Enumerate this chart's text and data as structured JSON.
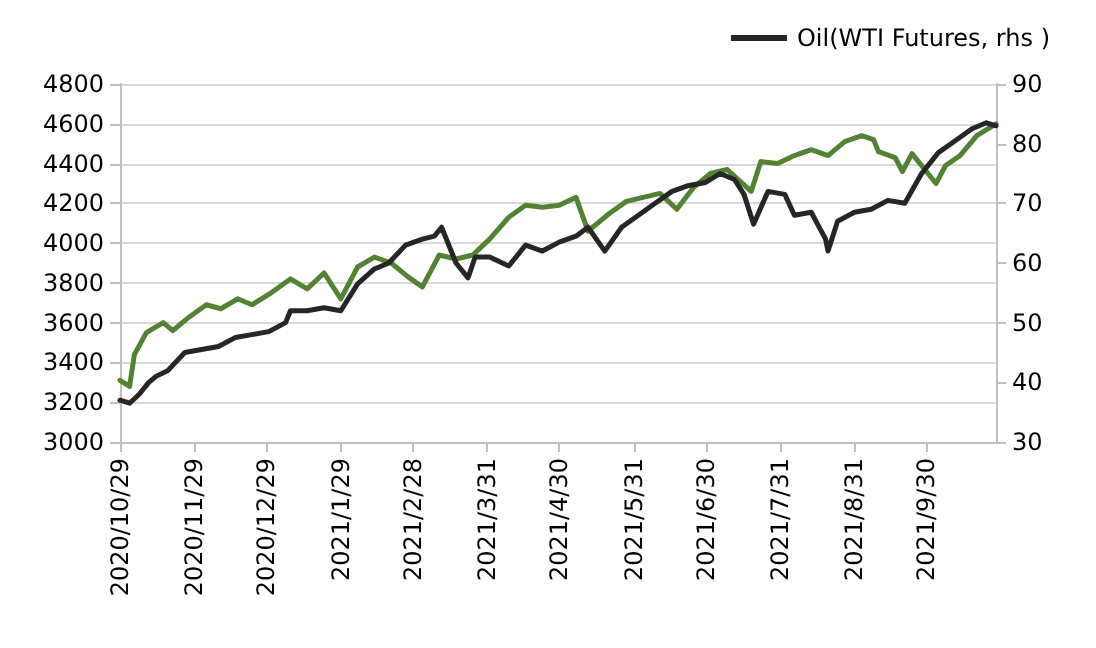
{
  "chart_data": {
    "type": "line",
    "legend": "top right",
    "grid": "y",
    "marker": "none",
    "line_style": "solid",
    "xlim": [
      "2020-10-29",
      "2021-10-29"
    ],
    "xticks": [
      {
        "value": "2020-10-29",
        "label": "2020/10/29"
      },
      {
        "value": "2020-11-29",
        "label": "2020/11/29"
      },
      {
        "value": "2020-12-29",
        "label": "2020/12/29"
      },
      {
        "value": "2021-01-29",
        "label": "2021/1/29"
      },
      {
        "value": "2021-02-28",
        "label": "2021/2/28"
      },
      {
        "value": "2021-03-31",
        "label": "2021/3/31"
      },
      {
        "value": "2021-04-30",
        "label": "2021/4/30"
      },
      {
        "value": "2021-05-31",
        "label": "2021/5/31"
      },
      {
        "value": "2021-06-30",
        "label": "2021/6/30"
      },
      {
        "value": "2021-07-31",
        "label": "2021/7/31"
      },
      {
        "value": "2021-08-31",
        "label": "2021/8/31"
      },
      {
        "value": "2021-09-30",
        "label": "2021/9/30"
      }
    ],
    "ylim": [
      3000,
      4800
    ],
    "yticks": [
      3000,
      3200,
      3400,
      3600,
      3800,
      4000,
      4200,
      4400,
      4600,
      4800
    ],
    "y2lim": [
      30,
      90
    ],
    "y2ticks": [
      30,
      40,
      50,
      60,
      70,
      80,
      90
    ],
    "series": [
      {
        "color": "#548235",
        "x": [
          "2020-10-29",
          "2020-11-02",
          "2020-11-04",
          "2020-11-09",
          "2020-11-16",
          "2020-11-20",
          "2020-11-27",
          "2020-12-04",
          "2020-12-10",
          "2020-12-17",
          "2020-12-23",
          "2020-12-31",
          "2021-01-08",
          "2021-01-15",
          "2021-01-22",
          "2021-01-29",
          "2021-02-05",
          "2021-02-12",
          "2021-02-19",
          "2021-02-26",
          "2021-03-04",
          "2021-03-11",
          "2021-03-18",
          "2021-03-25",
          "2021-04-01",
          "2021-04-09",
          "2021-04-16",
          "2021-04-23",
          "2021-04-30",
          "2021-05-07",
          "2021-05-12",
          "2021-05-21",
          "2021-05-28",
          "2021-06-04",
          "2021-06-11",
          "2021-06-18",
          "2021-06-25",
          "2021-07-02",
          "2021-07-09",
          "2021-07-19",
          "2021-07-23",
          "2021-07-30",
          "2021-08-06",
          "2021-08-13",
          "2021-08-20",
          "2021-08-27",
          "2021-09-03",
          "2021-09-08",
          "2021-09-10",
          "2021-09-17",
          "2021-09-20",
          "2021-09-24",
          "2021-10-04",
          "2021-10-08",
          "2021-10-14",
          "2021-10-21",
          "2021-10-29"
        ],
        "values": [
          3310,
          3280,
          3440,
          3550,
          3600,
          3560,
          3630,
          3690,
          3670,
          3720,
          3690,
          3750,
          3820,
          3770,
          3850,
          3720,
          3880,
          3930,
          3900,
          3830,
          3780,
          3940,
          3920,
          3940,
          4020,
          4130,
          4190,
          4180,
          4190,
          4230,
          4060,
          4150,
          4210,
          4230,
          4250,
          4170,
          4280,
          4350,
          4370,
          4260,
          4410,
          4400,
          4440,
          4470,
          4440,
          4510,
          4540,
          4520,
          4460,
          4430,
          4360,
          4450,
          4300,
          4390,
          4440,
          4540,
          4600
        ]
      },
      {
        "name": "Oil(WTI Futures, rhs )",
        "color": "#262626",
        "axis": "y2",
        "x": [
          "2020-10-29",
          "2020-11-02",
          "2020-11-06",
          "2020-11-10",
          "2020-11-13",
          "2020-11-18",
          "2020-11-25",
          "2020-12-02",
          "2020-12-09",
          "2020-12-16",
          "2020-12-23",
          "2020-12-30",
          "2021-01-06",
          "2021-01-08",
          "2021-01-15",
          "2021-01-22",
          "2021-01-29",
          "2021-02-05",
          "2021-02-12",
          "2021-02-18",
          "2021-02-25",
          "2021-03-04",
          "2021-03-09",
          "2021-03-12",
          "2021-03-18",
          "2021-03-23",
          "2021-03-26",
          "2021-04-01",
          "2021-04-09",
          "2021-04-16",
          "2021-04-23",
          "2021-04-30",
          "2021-05-07",
          "2021-05-12",
          "2021-05-19",
          "2021-05-26",
          "2021-06-02",
          "2021-06-09",
          "2021-06-16",
          "2021-06-23",
          "2021-06-30",
          "2021-07-06",
          "2021-07-12",
          "2021-07-16",
          "2021-07-20",
          "2021-07-26",
          "2021-08-02",
          "2021-08-06",
          "2021-08-13",
          "2021-08-19",
          "2021-08-20",
          "2021-08-24",
          "2021-08-31",
          "2021-09-07",
          "2021-09-14",
          "2021-09-21",
          "2021-09-28",
          "2021-10-05",
          "2021-10-12",
          "2021-10-19",
          "2021-10-25",
          "2021-10-29"
        ],
        "values": [
          37,
          36.5,
          38,
          40,
          41,
          42,
          45,
          45.5,
          46,
          47.5,
          48,
          48.5,
          50,
          52,
          52,
          52.5,
          52,
          56.5,
          59,
          60,
          63,
          64,
          64.5,
          66,
          60,
          57.5,
          61,
          61,
          59.5,
          63,
          62,
          63.5,
          64.5,
          66,
          62,
          66,
          68,
          70,
          72,
          73,
          73.5,
          75,
          74,
          71.5,
          66.5,
          72,
          71.5,
          68,
          68.5,
          64,
          62,
          67,
          68.5,
          69,
          70.5,
          70,
          75,
          78.5,
          80.5,
          82.5,
          83.5,
          83
        ]
      }
    ]
  }
}
